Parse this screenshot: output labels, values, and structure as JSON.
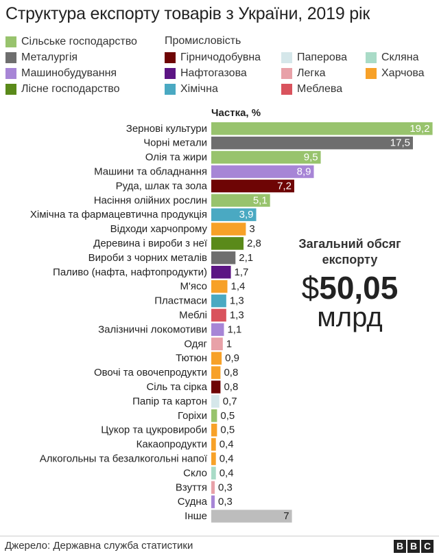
{
  "title": "Структура експорту товарів з України, 2019 рік",
  "legend": {
    "industry_heading": "Промисловість",
    "items": [
      {
        "key": "agri",
        "label": "Сільське господарство",
        "color": "#98c36d"
      },
      {
        "key": "metal",
        "label": "Металургія",
        "color": "#6e6e6e"
      },
      {
        "key": "machine",
        "label": "Машинобудування",
        "color": "#a785d6"
      },
      {
        "key": "forest",
        "label": "Лісне господарство",
        "color": "#5a8a1a"
      },
      {
        "key": "mining",
        "label": "Гірничодобувна",
        "color": "#6e0505"
      },
      {
        "key": "oilgas",
        "label": "Нафтогазова",
        "color": "#5c1584"
      },
      {
        "key": "chem",
        "label": "Хімічна",
        "color": "#4aa9c2"
      },
      {
        "key": "paper",
        "label": "Паперова",
        "color": "#d5e7ea"
      },
      {
        "key": "light",
        "label": "Легка",
        "color": "#e8a1a8"
      },
      {
        "key": "furniture",
        "label": "Меблева",
        "color": "#d9535d"
      },
      {
        "key": "glass",
        "label": "Скляна",
        "color": "#a9dbc7"
      },
      {
        "key": "food",
        "label": "Харчова",
        "color": "#f7a128"
      }
    ]
  },
  "axis_caption": "Частка, %",
  "total": {
    "label": "Загальний обсяг експорту",
    "currency": "$",
    "value": "50,05",
    "unit": "млрд"
  },
  "source": "Джерело: Державна служба статистики",
  "logo": [
    "B",
    "B",
    "C"
  ],
  "colors": {
    "other": "#bdbdbd"
  },
  "chart_data": {
    "type": "bar",
    "orientation": "horizontal",
    "xlim": [
      0,
      20
    ],
    "categories": [
      "Зернові культури",
      "Чорні метали",
      "Олія та жири",
      "Машини та обладнання",
      "Руда, шлак та зола",
      "Насіння олійних рослин",
      "Хімічна та фармацевтична продукція",
      "Відходи харчопрому",
      "Деревина і вироби з неї",
      "Вироби з чорних металів",
      "Паливо (нафта, нафтопродукти)",
      "М'ясо",
      "Пластмаси",
      "Меблі",
      "Залізничні локомотиви",
      "Одяг",
      "Тютюн",
      "Овочі та овочепродукти",
      "Сіль та сірка",
      "Папір та картон",
      "Горіхи",
      "Цукор та цукровироби",
      "Какаопродукти",
      "Алкогольны та безалкогольні напої",
      "Скло",
      "Взуття",
      "Судна",
      "Інше"
    ],
    "values": [
      19.2,
      17.5,
      9.5,
      8.9,
      7.2,
      5.1,
      3.9,
      3,
      2.8,
      2.1,
      1.7,
      1.4,
      1.3,
      1.3,
      1.1,
      1,
      0.9,
      0.8,
      0.8,
      0.7,
      0.5,
      0.5,
      0.4,
      0.4,
      0.4,
      0.3,
      0.3,
      7
    ],
    "value_labels": [
      "19,2",
      "17,5",
      "9,5",
      "8,9",
      "7,2",
      "5,1",
      "3,9",
      "3",
      "2,8",
      "2,1",
      "1,7",
      "1,4",
      "1,3",
      "1,3",
      "1,1",
      "1",
      "0,9",
      "0,8",
      "0,8",
      "0,7",
      "0,5",
      "0,5",
      "0,4",
      "0,4",
      "0,4",
      "0,3",
      "0,3",
      "7"
    ],
    "sectors": [
      "agri",
      "metal",
      "agri",
      "machine",
      "mining",
      "agri",
      "chem",
      "food",
      "forest",
      "metal",
      "oilgas",
      "food",
      "chem",
      "furniture",
      "machine",
      "light",
      "food",
      "food",
      "mining",
      "paper",
      "agri",
      "food",
      "food",
      "food",
      "glass",
      "light",
      "machine",
      "other"
    ]
  }
}
